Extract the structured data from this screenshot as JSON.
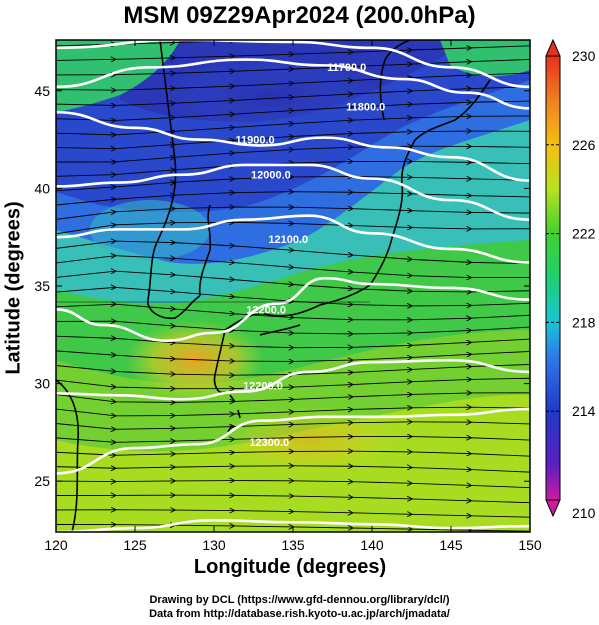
{
  "title": "MSM 09Z29Apr2024 (200.0hPa)",
  "xlabel": "Longitude (degrees)",
  "ylabel": "Latitude  (degrees)",
  "credit_line1": "Drawing by DCL (https://www.gfd-dennou.org/library/dcl/)",
  "credit_line2": "Data from http://database.rish.kyoto-u.ac.jp/arch/jmadata/",
  "chart_data": {
    "type": "heatmap",
    "variable_note": "temperature shading (K) with geopotential height contours (m) and wind streamlines",
    "x_ticks": [
      120,
      125,
      130,
      135,
      140,
      145,
      150
    ],
    "y_ticks": [
      25,
      30,
      35,
      40,
      45
    ],
    "xlim": [
      120,
      150
    ],
    "ylim": [
      22.4,
      47.6
    ],
    "colorbar": {
      "min": 210,
      "max": 230,
      "ticks": [
        210,
        214,
        218,
        222,
        226,
        230
      ],
      "colors": [
        "#d01aa0",
        "#5a1fc0",
        "#2238c8",
        "#2f78e8",
        "#18c4d8",
        "#20d070",
        "#40d030",
        "#b8e020",
        "#f4c010",
        "#f08020",
        "#e83020"
      ]
    },
    "contour_labels": [
      "11700.0",
      "11800.0",
      "11900.0",
      "12000.0",
      "12100.0",
      "12200.0",
      "12300.0"
    ],
    "contour_lines": [
      {
        "label": "11700.0",
        "points": [
          [
            120,
            47.2
          ],
          [
            128,
            47.6
          ],
          [
            135,
            47.5
          ],
          [
            140,
            47.2
          ],
          [
            145,
            46.2
          ],
          [
            150,
            45.2
          ]
        ]
      },
      {
        "label": "11800.0",
        "points": [
          [
            120,
            45.2
          ],
          [
            126,
            46.2
          ],
          [
            132,
            46.6
          ],
          [
            137,
            46.3
          ],
          [
            142,
            45.6
          ],
          [
            146,
            44.9
          ],
          [
            150,
            44.1
          ]
        ]
      },
      {
        "label": "11900.0",
        "points": [
          [
            120,
            43.9
          ],
          [
            125,
            43.1
          ],
          [
            129,
            42.5
          ],
          [
            133,
            42.2
          ],
          [
            137,
            42.6
          ],
          [
            141,
            42.1
          ],
          [
            145,
            41.6
          ],
          [
            150,
            40.4
          ]
        ]
      },
      {
        "label": "12000.0",
        "points": [
          [
            120,
            40.1
          ],
          [
            124,
            40.3
          ],
          [
            128,
            40.7
          ],
          [
            132,
            41.2
          ],
          [
            136,
            41.2
          ],
          [
            140,
            40.5
          ],
          [
            145,
            39.4
          ],
          [
            150,
            38.4
          ]
        ]
      },
      {
        "label": "12100.0",
        "points": [
          [
            120,
            37.5
          ],
          [
            124,
            37.9
          ],
          [
            128,
            37.9
          ],
          [
            132,
            38.4
          ],
          [
            136,
            38.6
          ],
          [
            140,
            37.7
          ],
          [
            145,
            36.9
          ],
          [
            150,
            36.2
          ]
        ]
      },
      {
        "label": "12200.0",
        "points": [
          [
            120,
            33.8
          ],
          [
            123,
            33.0
          ],
          [
            127,
            32.2
          ],
          [
            130,
            32.6
          ],
          [
            134,
            34.1
          ],
          [
            137,
            35.4
          ],
          [
            140,
            35.1
          ],
          [
            145,
            34.9
          ],
          [
            150,
            34.3
          ]
        ]
      },
      {
        "label": "12200.0",
        "points": [
          [
            120,
            29.5
          ],
          [
            124,
            29.4
          ],
          [
            128,
            29.2
          ],
          [
            132,
            29.6
          ],
          [
            136,
            30.6
          ],
          [
            140,
            31.1
          ],
          [
            145,
            31.2
          ],
          [
            150,
            30.6
          ]
        ]
      },
      {
        "label": "12300.0",
        "points": [
          [
            120,
            25.4
          ],
          [
            125,
            26.7
          ],
          [
            129,
            26.9
          ],
          [
            133,
            28.1
          ],
          [
            137,
            28.3
          ],
          [
            141,
            28.3
          ],
          [
            145,
            28.4
          ],
          [
            150,
            28.7
          ]
        ]
      },
      {
        "label": "12300.0",
        "points": [
          [
            120,
            22.4
          ],
          [
            125,
            22.6
          ],
          [
            130,
            23.0
          ],
          [
            135,
            22.9
          ],
          [
            140,
            22.8
          ],
          [
            145,
            22.6
          ],
          [
            150,
            22.7
          ]
        ]
      }
    ],
    "contour_label_positions": [
      {
        "text": "11700.0",
        "lon": 138.4,
        "lat": 46.0
      },
      {
        "text": "11800.0",
        "lon": 139.6,
        "lat": 44.0
      },
      {
        "text": "11900.0",
        "lon": 132.6,
        "lat": 42.3
      },
      {
        "text": "12000.0",
        "lon": 133.6,
        "lat": 40.5
      },
      {
        "text": "12100.0",
        "lon": 134.7,
        "lat": 37.2
      },
      {
        "text": "12200.0",
        "lon": 133.3,
        "lat": 33.6
      },
      {
        "text": "12200.0",
        "lon": 133.1,
        "lat": 29.7
      },
      {
        "text": "12300.0",
        "lon": 133.5,
        "lat": 26.8
      }
    ]
  }
}
